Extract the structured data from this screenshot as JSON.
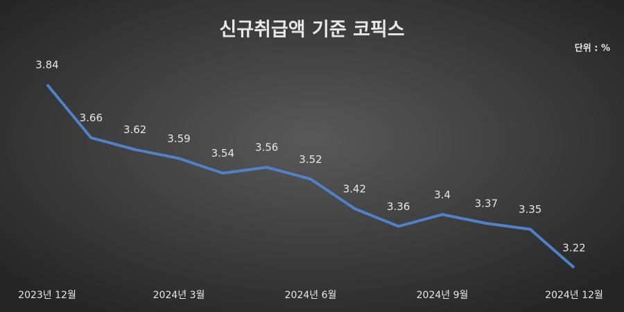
{
  "chart_data": {
    "type": "line",
    "title": "신규취급액 기준 코픽스",
    "unit_label": "단위 : %",
    "categories": [
      "2023년 12월",
      null,
      null,
      "2024년 3월",
      null,
      null,
      "2024년 6월",
      null,
      null,
      "2024년 9월",
      null,
      null,
      "2024년 12월"
    ],
    "values": [
      3.84,
      3.66,
      3.62,
      3.59,
      3.54,
      3.56,
      3.52,
      3.42,
      3.36,
      3.4,
      3.37,
      3.35,
      3.22
    ],
    "color": "#4f82c8"
  }
}
